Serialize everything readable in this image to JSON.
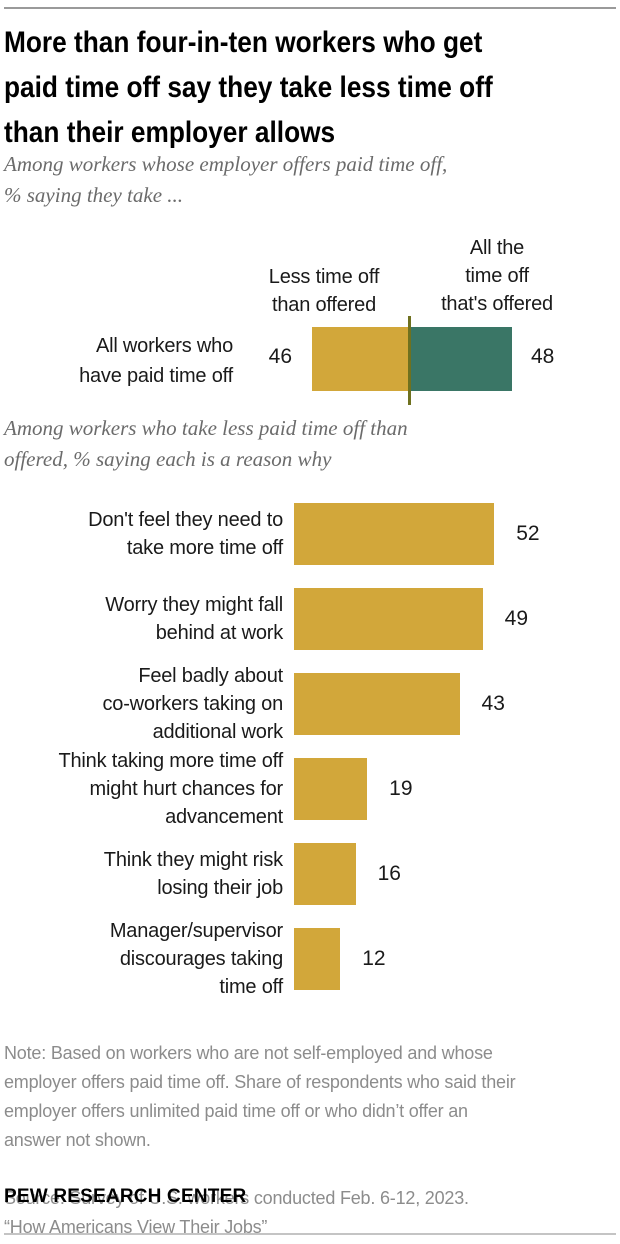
{
  "chart_data": [
    {
      "type": "bar",
      "orientation": "horizontal",
      "stacked": true,
      "title": "Among workers whose employer offers paid time off, % saying they take ...",
      "categories": [
        "All workers who have paid time off"
      ],
      "series": [
        {
          "name": "Less time off than offered",
          "values": [
            46
          ],
          "color": "#D2A73A"
        },
        {
          "name": "All the time off that's offered",
          "values": [
            48
          ],
          "color": "#3A7666"
        }
      ],
      "xlim": [
        0,
        100
      ],
      "value_labels": true,
      "grid": false,
      "legend_position": "above-bars"
    },
    {
      "type": "bar",
      "orientation": "horizontal",
      "title": "Among workers who take less paid time off than offered, % saying each is a reason why",
      "categories": [
        "Don't feel they need to take more time off",
        "Worry they might fall behind at work",
        "Feel badly about co-workers taking on additional work",
        "Think taking more time off might hurt chances for advancement",
        "Think they might risk losing their job",
        "Manager/supervisor discourages taking time off"
      ],
      "values": [
        52,
        49,
        43,
        19,
        16,
        12
      ],
      "color": "#D2A73A",
      "xlim": [
        0,
        60
      ],
      "value_labels": true,
      "grid": false
    }
  ],
  "ui": {
    "title": "More than four-in-ten workers who get\npaid time off say they take less time off\nthan their employer allows",
    "chart1": {
      "subtitle": "Among workers whose employer offers paid time off,\n% saying they take ...",
      "col_left_header": "Less time off\nthan offered",
      "col_right_header": "All the\ntime off\nthat's offered",
      "row_label": "All workers who\nhave paid time off"
    },
    "chart2": {
      "subtitle": "Among workers who take less paid time off than\noffered, % saying each is a reason why",
      "row_labels": [
        "Don't feel they need to\ntake more time off",
        "Worry they might fall\nbehind at work",
        "Feel badly about\nco-workers taking on\nadditional work",
        "Think taking more time off\nmight hurt chances for\nadvancement",
        "Think they might risk\nlosing their job",
        "Manager/supervisor\ndiscourages taking\ntime off"
      ]
    },
    "footer": {
      "note": "Note: Based on workers who are not self-employed and whose\nemployer offers paid time off. Share of respondents who said their\nemployer offers unlimited paid time off or who didn’t offer an\nanswer not shown.",
      "source": "Source: Survey of U.S. workers conducted Feb. 6-12, 2023.\n“How Americans View Their Jobs”",
      "brand": "PEW RESEARCH CENTER"
    },
    "colors": {
      "gold": "#D2A73A",
      "teal": "#3A7666",
      "divider_line": "#6F711F",
      "note_gray": "#8c8c8c"
    }
  }
}
